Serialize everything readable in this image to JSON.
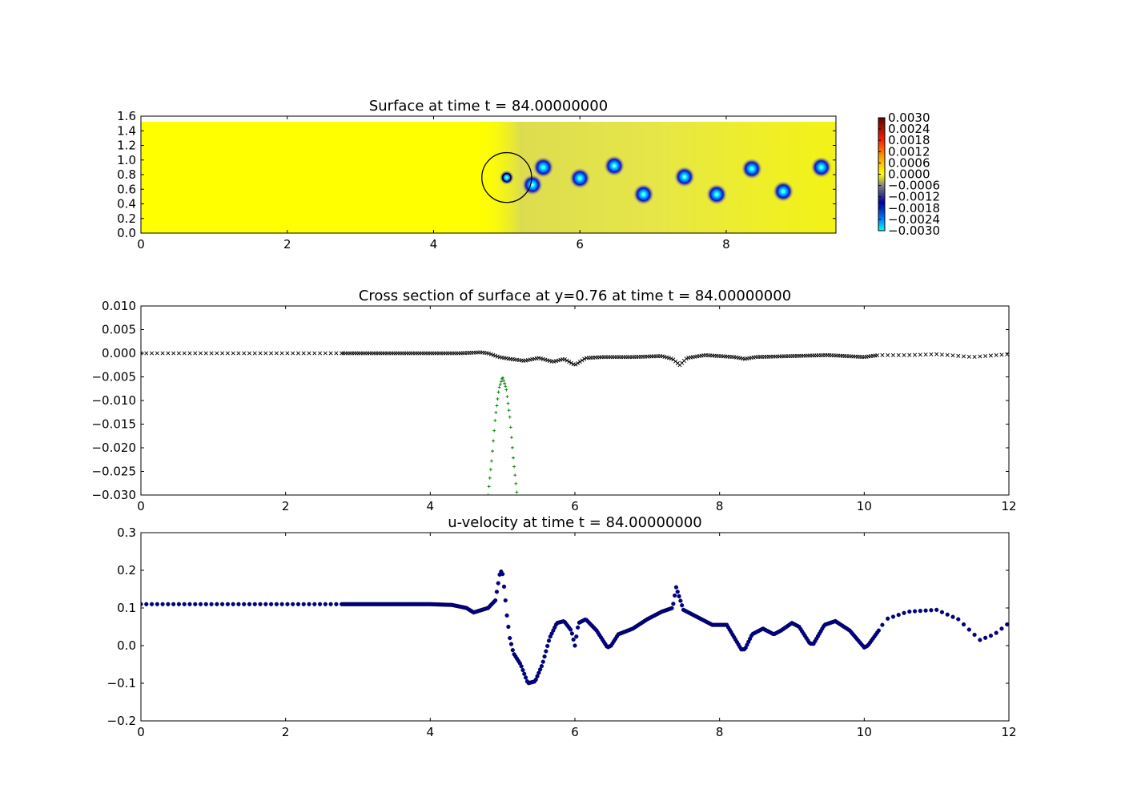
{
  "chart_data": [
    {
      "type": "heatmap",
      "title": "Surface at time t =    84.00000000",
      "xlim": [
        0,
        9.5
      ],
      "ylim": [
        0,
        1.6
      ],
      "xticks": [
        "0",
        "2",
        "4",
        "6",
        "8"
      ],
      "yticks": [
        "0.0",
        "0.2",
        "0.4",
        "0.6",
        "0.8",
        "1.0",
        "1.2",
        "1.4",
        "1.6"
      ],
      "colorbar_ticks": [
        "0.0030",
        "0.0024",
        "0.0018",
        "0.0012",
        "0.0006",
        "0.0000",
        "−0.0006",
        "−0.0012",
        "−0.0018",
        "−0.0024",
        "−0.0030"
      ],
      "colorbar_range": [
        -0.003,
        0.003
      ],
      "background_value": 0.0,
      "grey_region_start_x": 4.6,
      "vortices": [
        {
          "x": 5.0,
          "y": 0.76
        },
        {
          "x": 5.35,
          "y": 0.66
        },
        {
          "x": 5.5,
          "y": 0.9
        },
        {
          "x": 6.0,
          "y": 0.75
        },
        {
          "x": 6.47,
          "y": 0.92
        },
        {
          "x": 6.87,
          "y": 0.53
        },
        {
          "x": 7.43,
          "y": 0.77
        },
        {
          "x": 7.87,
          "y": 0.53
        },
        {
          "x": 8.35,
          "y": 0.88
        },
        {
          "x": 8.78,
          "y": 0.57
        },
        {
          "x": 9.3,
          "y": 0.9
        }
      ],
      "circle": {
        "cx": 5.0,
        "cy": 0.76,
        "r": 0.34
      },
      "colors": {
        "background": "#ffff00",
        "wake": "#c8c8a0",
        "vortex_core": "#00e0ff",
        "vortex_ring": "#2020d0"
      }
    },
    {
      "type": "scatter",
      "title": "Cross section of surface at y=0.76 at time t =    84.00000000",
      "xlim": [
        0,
        12
      ],
      "ylim": [
        -0.03,
        0.01
      ],
      "xticks": [
        "0",
        "2",
        "4",
        "6",
        "8",
        "10",
        "12"
      ],
      "yticks": [
        "0.010",
        "0.005",
        "0.000",
        "−0.005",
        "−0.010",
        "−0.015",
        "−0.020",
        "−0.025",
        "−0.030"
      ],
      "series": [
        {
          "marker": "x",
          "color": "#000000",
          "x": [
            0,
            2.8,
            4.4,
            4.7,
            4.8,
            4.95,
            5.1,
            5.3,
            5.5,
            5.7,
            5.85,
            6.0,
            6.15,
            6.4,
            6.8,
            7.2,
            7.35,
            7.45,
            7.55,
            7.8,
            8.2,
            8.35,
            8.5,
            9.0,
            9.5,
            10.0,
            10.2,
            10.6,
            11.0,
            11.5,
            12.0
          ],
          "y": [
            0.0,
            0.0,
            0.0,
            0.0002,
            0.0,
            -0.0008,
            -0.0012,
            -0.0016,
            -0.001,
            -0.0018,
            -0.0012,
            -0.0025,
            -0.001,
            -0.0008,
            -0.0008,
            -0.0006,
            -0.0012,
            -0.0025,
            -0.001,
            -0.0004,
            -0.0008,
            -0.0012,
            -0.0008,
            -0.0006,
            -0.0004,
            -0.0008,
            -0.0004,
            -0.0004,
            -0.0002,
            -0.0008,
            -0.0002
          ]
        },
        {
          "marker": "+",
          "color": "#008000",
          "x": [
            4.8,
            4.85,
            4.9,
            4.95,
            5.0,
            5.05,
            5.1,
            5.15,
            5.2
          ],
          "y": [
            -0.03,
            -0.0225,
            -0.0135,
            -0.0075,
            -0.005,
            -0.0075,
            -0.0135,
            -0.0225,
            -0.03
          ]
        }
      ]
    },
    {
      "type": "scatter",
      "title": "u-velocity at time t =    84.00000000",
      "xlim": [
        0,
        12
      ],
      "ylim": [
        -0.2,
        0.3
      ],
      "xticks": [
        "0",
        "2",
        "4",
        "6",
        "8",
        "10",
        "12"
      ],
      "yticks": [
        "0.3",
        "0.2",
        "0.1",
        "0.0",
        "−0.1",
        "−0.2"
      ],
      "series": [
        {
          "marker": "o",
          "color": "#00008b",
          "x": [
            0,
            2.8,
            4.0,
            4.3,
            4.5,
            4.6,
            4.8,
            4.9,
            4.97,
            5.0,
            5.03,
            5.06,
            5.1,
            5.15,
            5.25,
            5.35,
            5.45,
            5.55,
            5.65,
            5.75,
            5.85,
            5.95,
            6.0,
            6.05,
            6.15,
            6.3,
            6.45,
            6.5,
            6.6,
            6.8,
            7.0,
            7.2,
            7.35,
            7.4,
            7.5,
            7.7,
            7.9,
            8.1,
            8.3,
            8.35,
            8.45,
            8.6,
            8.75,
            8.85,
            9.0,
            9.1,
            9.25,
            9.3,
            9.45,
            9.6,
            9.8,
            10.0,
            10.05,
            10.2,
            10.3,
            10.6,
            11.0,
            11.3,
            11.6,
            11.8,
            12.0
          ],
          "y": [
            0.11,
            0.11,
            0.11,
            0.108,
            0.1,
            0.088,
            0.1,
            0.12,
            0.2,
            0.19,
            0.14,
            0.08,
            0.02,
            -0.02,
            -0.05,
            -0.1,
            -0.095,
            -0.05,
            0.02,
            0.06,
            0.065,
            0.04,
            0.0,
            0.06,
            0.07,
            0.04,
            -0.005,
            0.0,
            0.03,
            0.045,
            0.07,
            0.09,
            0.1,
            0.155,
            0.095,
            0.075,
            0.055,
            0.055,
            -0.01,
            -0.01,
            0.03,
            0.045,
            0.03,
            0.04,
            0.06,
            0.05,
            0.005,
            0.005,
            0.055,
            0.065,
            0.04,
            -0.005,
            0.0,
            0.04,
            0.07,
            0.09,
            0.095,
            0.07,
            0.015,
            0.03,
            0.06
          ]
        }
      ]
    }
  ]
}
